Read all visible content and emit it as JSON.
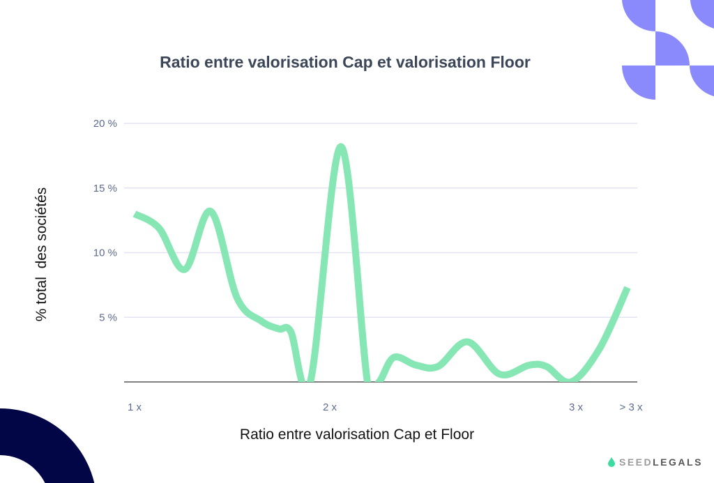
{
  "colors": {
    "line": "#86e6b4",
    "grid": "#e2e3f3",
    "axis": "#555555",
    "tick_text": "#5b6a8f",
    "decoration_purple": "#8a8afc",
    "decoration_navy": "#020647",
    "logo_drop": "#3ddba0"
  },
  "logo": {
    "part1": "SEED",
    "part2": "LEGALS",
    "icon": "drop-icon"
  },
  "chart_data": {
    "type": "line",
    "title": "Ratio entre valorisation Cap et valorisation Floor",
    "xlabel": "Ratio entre valorisation Cap et Floor",
    "ylabel": "% total  des sociétés",
    "ylim": [
      0,
      20
    ],
    "grid": true,
    "yticks": [
      {
        "value": 5,
        "label": "5 %"
      },
      {
        "value": 10,
        "label": "10 %"
      },
      {
        "value": 15,
        "label": "15 %"
      },
      {
        "value": 20,
        "label": "20 %"
      }
    ],
    "xticks": [
      {
        "value": 1,
        "label": "1 x"
      },
      {
        "value": 2,
        "label": "2 x"
      },
      {
        "value": 3,
        "label": "3 x"
      },
      {
        "value": 3.22,
        "label": "> 3 x"
      }
    ],
    "series": [
      {
        "points": [
          [
            1.0,
            13.0
          ],
          [
            1.125,
            11.9
          ],
          [
            1.257,
            8.7
          ],
          [
            1.39,
            13.2
          ],
          [
            1.525,
            6.5
          ],
          [
            1.65,
            4.7
          ],
          [
            1.74,
            4.1
          ],
          [
            1.8,
            3.9
          ],
          [
            1.9,
            0
          ],
          [
            2.045,
            18.2
          ],
          [
            2.153,
            0
          ],
          [
            2.2,
            0
          ],
          [
            2.26,
            1.9
          ],
          [
            2.35,
            1.3
          ],
          [
            2.44,
            1.2
          ],
          [
            2.56,
            3.1
          ],
          [
            2.69,
            0.6
          ],
          [
            2.81,
            1.3
          ],
          [
            2.88,
            1.2
          ],
          [
            2.98,
            0
          ],
          [
            3.095,
            2.6
          ],
          [
            3.206,
            7.3
          ]
        ]
      }
    ]
  }
}
